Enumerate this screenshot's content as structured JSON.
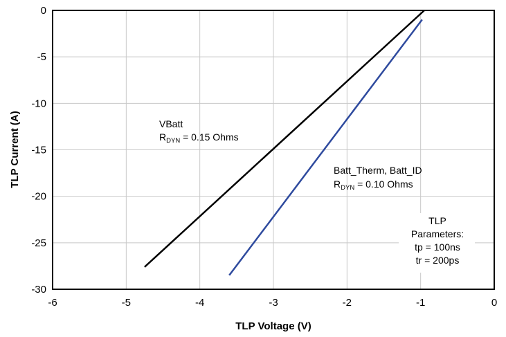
{
  "chart_data": {
    "type": "line",
    "xlabel": "TLP Voltage (V)",
    "ylabel": "TLP Current (A)",
    "xlim": [
      -6,
      0
    ],
    "ylim": [
      -30,
      0
    ],
    "xticks": [
      "-6",
      "-5",
      "-4",
      "-3",
      "-2",
      "-1",
      "0"
    ],
    "yticks": [
      "0",
      "-5",
      "-10",
      "-15",
      "-20",
      "-25",
      "-30"
    ],
    "grid": true,
    "series": [
      {
        "color": "#000000",
        "x": [
          -4.75,
          -0.95
        ],
        "y": [
          -27.6,
          0
        ]
      },
      {
        "color": "#2e4a9e",
        "x": [
          -3.6,
          -0.98
        ],
        "y": [
          -28.5,
          -1.0
        ]
      }
    ],
    "annotations": {
      "vbatt_name": "VBatt",
      "vbatt_r": "R",
      "vbatt_sub": "DYN",
      "vbatt_val": " = 0.15 Ohms",
      "batt_name": "Batt_Therm, Batt_ID",
      "batt_r": "R",
      "batt_sub": "DYN",
      "batt_val": " = 0.10 Ohms",
      "tlp_line1": "TLP",
      "tlp_line2": "Parameters:",
      "tlp_line3": "tp = 100ns",
      "tlp_line4": "tr = 200ps"
    }
  }
}
